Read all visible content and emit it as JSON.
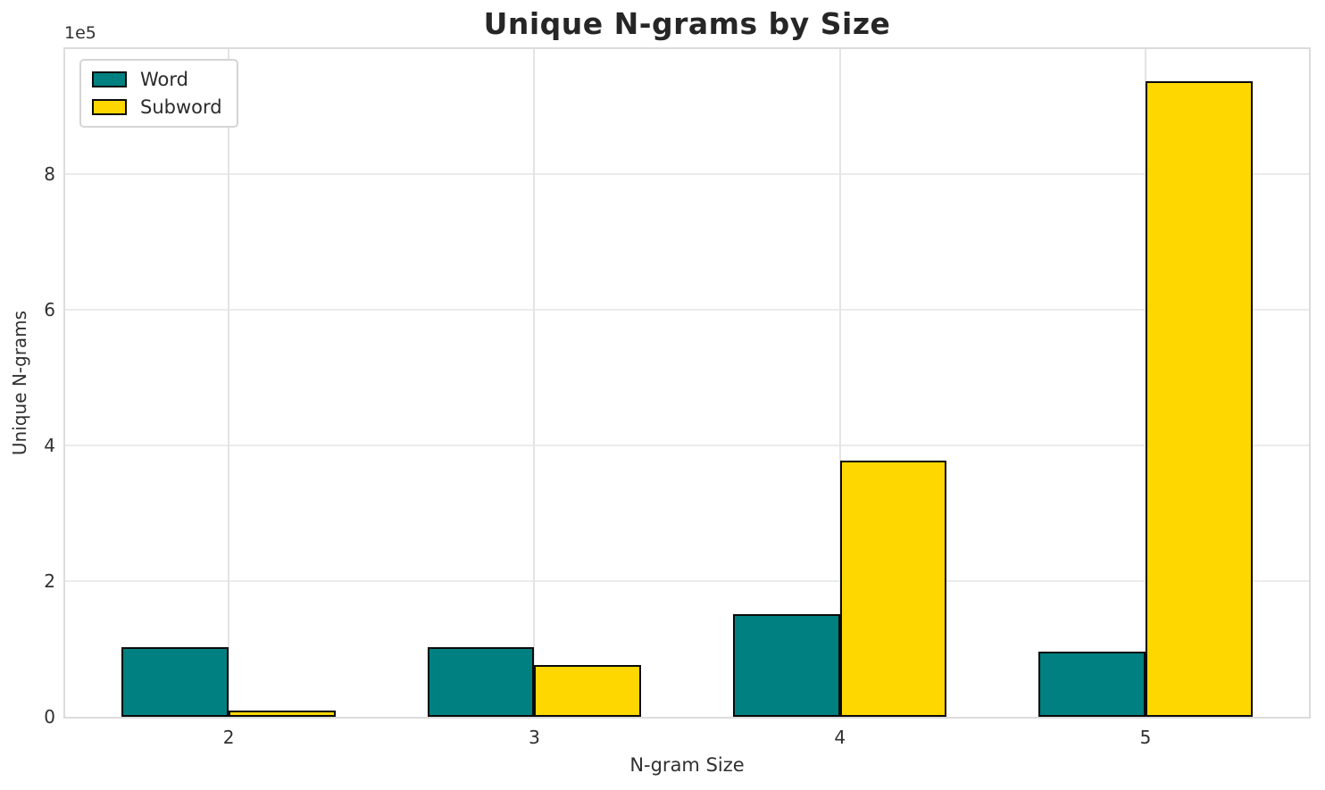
{
  "title": "Unique N-grams by Size",
  "chart_data": {
    "type": "bar",
    "title": "Unique N-grams by Size",
    "xlabel": "N-gram Size",
    "ylabel": "Unique N-grams",
    "y_offset_label": "1e5",
    "categories": [
      "2",
      "3",
      "4",
      "5"
    ],
    "series": [
      {
        "name": "Word",
        "color": "#008080",
        "values": [
          103000,
          103000,
          151000,
          96000
        ]
      },
      {
        "name": "Subword",
        "color": "#FFD700",
        "values": [
          9000,
          76000,
          378000,
          937000
        ]
      }
    ],
    "bar_edge_color": "#0a0a0a",
    "ylim": [
      0,
      984000
    ],
    "yticks": [
      0,
      200000,
      400000,
      600000,
      800000
    ],
    "ytick_labels": [
      "0",
      "2",
      "4",
      "6",
      "8"
    ],
    "grid": "on",
    "grid_color": "#e9e9e9",
    "spine_color": "#dcdcdc",
    "background_color": "#ffffff",
    "legend_position": "upper left"
  }
}
